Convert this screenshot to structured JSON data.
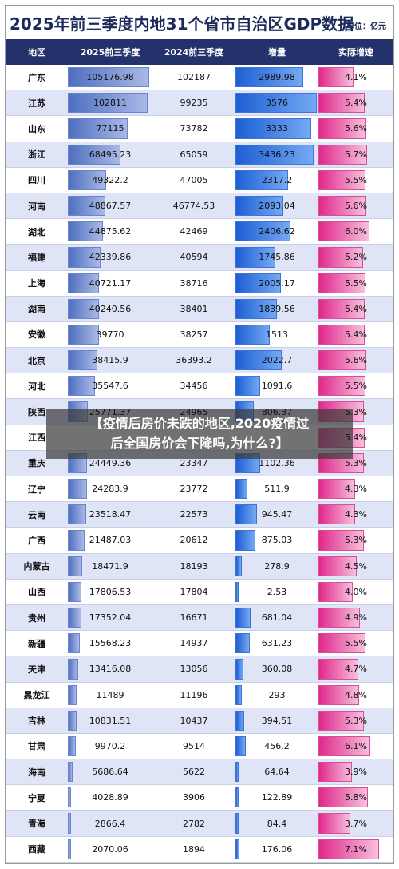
{
  "title": "2025年前三季度内地31个省市自治区GDP数据",
  "unit": "单位：亿元",
  "headers": {
    "region": "地区",
    "gdp2025": "2025前三季度",
    "gdp2024": "2024前三季度",
    "increase": "增量",
    "growth": "实际增速"
  },
  "overlay": {
    "line1": "【疫情后房价未跌的地区,2020疫情过",
    "line2": "后全国房价会下降吗,为什么?】"
  },
  "chart_data": {
    "type": "table",
    "columns": [
      "地区",
      "2025前三季度",
      "2024前三季度",
      "增量",
      "实际增速"
    ],
    "rows": [
      {
        "region": "广东",
        "gdp2025": "105176.98",
        "gdp2024": "102187",
        "increase": "2989.98",
        "growth": "4.1%"
      },
      {
        "region": "江苏",
        "gdp2025": "102811",
        "gdp2024": "99235",
        "increase": "3576",
        "growth": "5.4%"
      },
      {
        "region": "山东",
        "gdp2025": "77115",
        "gdp2024": "73782",
        "increase": "3333",
        "growth": "5.6%"
      },
      {
        "region": "浙江",
        "gdp2025": "68495.23",
        "gdp2024": "65059",
        "increase": "3436.23",
        "growth": "5.7%"
      },
      {
        "region": "四川",
        "gdp2025": "49322.2",
        "gdp2024": "47005",
        "increase": "2317.2",
        "growth": "5.5%"
      },
      {
        "region": "河南",
        "gdp2025": "48867.57",
        "gdp2024": "46774.53",
        "increase": "2093.04",
        "growth": "5.6%"
      },
      {
        "region": "湖北",
        "gdp2025": "44875.62",
        "gdp2024": "42469",
        "increase": "2406.62",
        "growth": "6.0%"
      },
      {
        "region": "福建",
        "gdp2025": "42339.86",
        "gdp2024": "40594",
        "increase": "1745.86",
        "growth": "5.2%"
      },
      {
        "region": "上海",
        "gdp2025": "40721.17",
        "gdp2024": "38716",
        "increase": "2005.17",
        "growth": "5.5%"
      },
      {
        "region": "湖南",
        "gdp2025": "40240.56",
        "gdp2024": "38401",
        "increase": "1839.56",
        "growth": "5.4%"
      },
      {
        "region": "安徽",
        "gdp2025": "39770",
        "gdp2024": "38257",
        "increase": "1513",
        "growth": "5.4%"
      },
      {
        "region": "北京",
        "gdp2025": "38415.9",
        "gdp2024": "36393.2",
        "increase": "2022.7",
        "growth": "5.6%"
      },
      {
        "region": "河北",
        "gdp2025": "35547.6",
        "gdp2024": "34456",
        "increase": "1091.6",
        "growth": "5.5%"
      },
      {
        "region": "陕西",
        "gdp2025": "25771.37",
        "gdp2024": "24965",
        "increase": "806.37",
        "growth": "5.3%"
      },
      {
        "region": "江西",
        "gdp2025": "",
        "gdp2024": "",
        "increase": "",
        "growth": "5.4%"
      },
      {
        "region": "重庆",
        "gdp2025": "24449.36",
        "gdp2024": "23347",
        "increase": "1102.36",
        "growth": "5.3%"
      },
      {
        "region": "辽宁",
        "gdp2025": "24283.9",
        "gdp2024": "23772",
        "increase": "511.9",
        "growth": "4.3%"
      },
      {
        "region": "云南",
        "gdp2025": "23518.47",
        "gdp2024": "22573",
        "increase": "945.47",
        "growth": "4.3%"
      },
      {
        "region": "广西",
        "gdp2025": "21487.03",
        "gdp2024": "20612",
        "increase": "875.03",
        "growth": "5.3%"
      },
      {
        "region": "内蒙古",
        "gdp2025": "18471.9",
        "gdp2024": "18193",
        "increase": "278.9",
        "growth": "4.5%"
      },
      {
        "region": "山西",
        "gdp2025": "17806.53",
        "gdp2024": "17804",
        "increase": "2.53",
        "growth": "4.0%"
      },
      {
        "region": "贵州",
        "gdp2025": "17352.04",
        "gdp2024": "16671",
        "increase": "681.04",
        "growth": "4.9%"
      },
      {
        "region": "新疆",
        "gdp2025": "15568.23",
        "gdp2024": "14937",
        "increase": "631.23",
        "growth": "5.5%"
      },
      {
        "region": "天津",
        "gdp2025": "13416.08",
        "gdp2024": "13056",
        "increase": "360.08",
        "growth": "4.7%"
      },
      {
        "region": "黑龙江",
        "gdp2025": "11489",
        "gdp2024": "11196",
        "increase": "293",
        "growth": "4.8%"
      },
      {
        "region": "吉林",
        "gdp2025": "10831.51",
        "gdp2024": "10437",
        "increase": "394.51",
        "growth": "5.3%"
      },
      {
        "region": "甘肃",
        "gdp2025": "9970.2",
        "gdp2024": "9514",
        "increase": "456.2",
        "growth": "6.1%"
      },
      {
        "region": "海南",
        "gdp2025": "5686.64",
        "gdp2024": "5622",
        "increase": "64.64",
        "growth": "3.9%"
      },
      {
        "region": "宁夏",
        "gdp2025": "4028.89",
        "gdp2024": "3906",
        "increase": "122.89",
        "growth": "5.8%"
      },
      {
        "region": "青海",
        "gdp2025": "2866.4",
        "gdp2024": "2782",
        "increase": "84.4",
        "growth": "3.7%"
      },
      {
        "region": "西藏",
        "gdp2025": "2070.06",
        "gdp2024": "1894",
        "increase": "176.06",
        "growth": "7.1%"
      }
    ],
    "bar_scale": {
      "gdp2025_max": 105176.98,
      "increase_max": 3576,
      "growth_max": 7.1
    },
    "colors": {
      "header_bg": "#24326b",
      "gdp_bar": "#4d6fc0",
      "increase_bar": "#1d5fd4",
      "growth_bar": "#e0298c",
      "row_alt": "#dfe5f7"
    }
  }
}
